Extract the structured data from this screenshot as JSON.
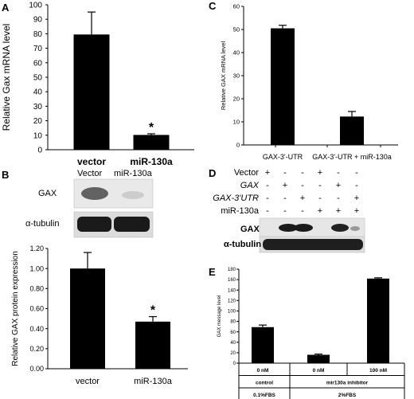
{
  "panels": {
    "A": {
      "letter": "A"
    },
    "B": {
      "letter": "B",
      "blot": {
        "lanes": [
          "Vector",
          "miR-130a"
        ],
        "rows": [
          "GAX",
          "α-tubulin"
        ]
      }
    },
    "C": {
      "letter": "C"
    },
    "D": {
      "letter": "D",
      "rows": [
        {
          "label": "Vector",
          "italic": false,
          "signs": [
            "+",
            "-",
            "-",
            "+",
            "-",
            "-"
          ]
        },
        {
          "label": "GAX",
          "italic": true,
          "signs": [
            "-",
            "+",
            "-",
            "-",
            "+",
            "-"
          ]
        },
        {
          "label": "GAX-3'UTR",
          "italic": "partial",
          "signs": [
            "-",
            "-",
            "+",
            "-",
            "-",
            "+"
          ]
        },
        {
          "label": "miR-130a",
          "italic": false,
          "signs": [
            "-",
            "-",
            "-",
            "+",
            "+",
            "+"
          ]
        }
      ],
      "blot_rows": [
        "GAX",
        "α-tubulin"
      ]
    },
    "E": {
      "letter": "E"
    }
  },
  "chart_data": [
    {
      "panel": "A",
      "type": "bar",
      "categories": [
        "vector",
        "miR-130a"
      ],
      "values": [
        79.5,
        10.2
      ],
      "errors": [
        15.5,
        0.8
      ],
      "significance": [
        "",
        "*"
      ],
      "ylabel": "Relative Gax mRNA level",
      "ylim": [
        0,
        100
      ],
      "yticks": [
        "0",
        "10",
        "20",
        "30",
        "40",
        "50",
        "60",
        "70",
        "80",
        "90",
        "100"
      ]
    },
    {
      "panel": "B",
      "type": "bar",
      "categories": [
        "vector",
        "miR-130a"
      ],
      "values": [
        1.0,
        0.47
      ],
      "errors": [
        0.16,
        0.05
      ],
      "significance": [
        "",
        "*"
      ],
      "ylabel": "Relative GAX protein expression",
      "ylim": [
        0,
        1.2
      ],
      "yticks": [
        "0.00",
        "0.20",
        "0.40",
        "0.60",
        "0.80",
        "1.00",
        "1.20"
      ]
    },
    {
      "panel": "C",
      "type": "bar",
      "categories": [
        "GAX-3'-UTR",
        "GAX-3'-UTR + miR-130a"
      ],
      "values": [
        50.5,
        12.3
      ],
      "errors": [
        1.3,
        2.2
      ],
      "ylabel": "Relative GAX mRNA level",
      "ylim": [
        0,
        60
      ],
      "yticks": [
        "0",
        "10",
        "20",
        "30",
        "40",
        "50",
        "60"
      ]
    },
    {
      "panel": "E",
      "type": "bar",
      "categories": [
        "0 nM",
        "0 nM",
        "100 nM"
      ],
      "values": [
        69,
        16,
        162
      ],
      "errors": [
        4,
        1.5,
        1.5
      ],
      "ylabel": "GAX message level",
      "ylim": [
        0,
        180
      ],
      "yticks": [
        "0",
        "20",
        "40",
        "60",
        "80",
        "100",
        "120",
        "140",
        "160",
        "180"
      ],
      "table_row1": [
        "control",
        "mir130a inhibitor"
      ],
      "table_row2": [
        "0.1%FBS",
        "2%FBS"
      ]
    }
  ]
}
